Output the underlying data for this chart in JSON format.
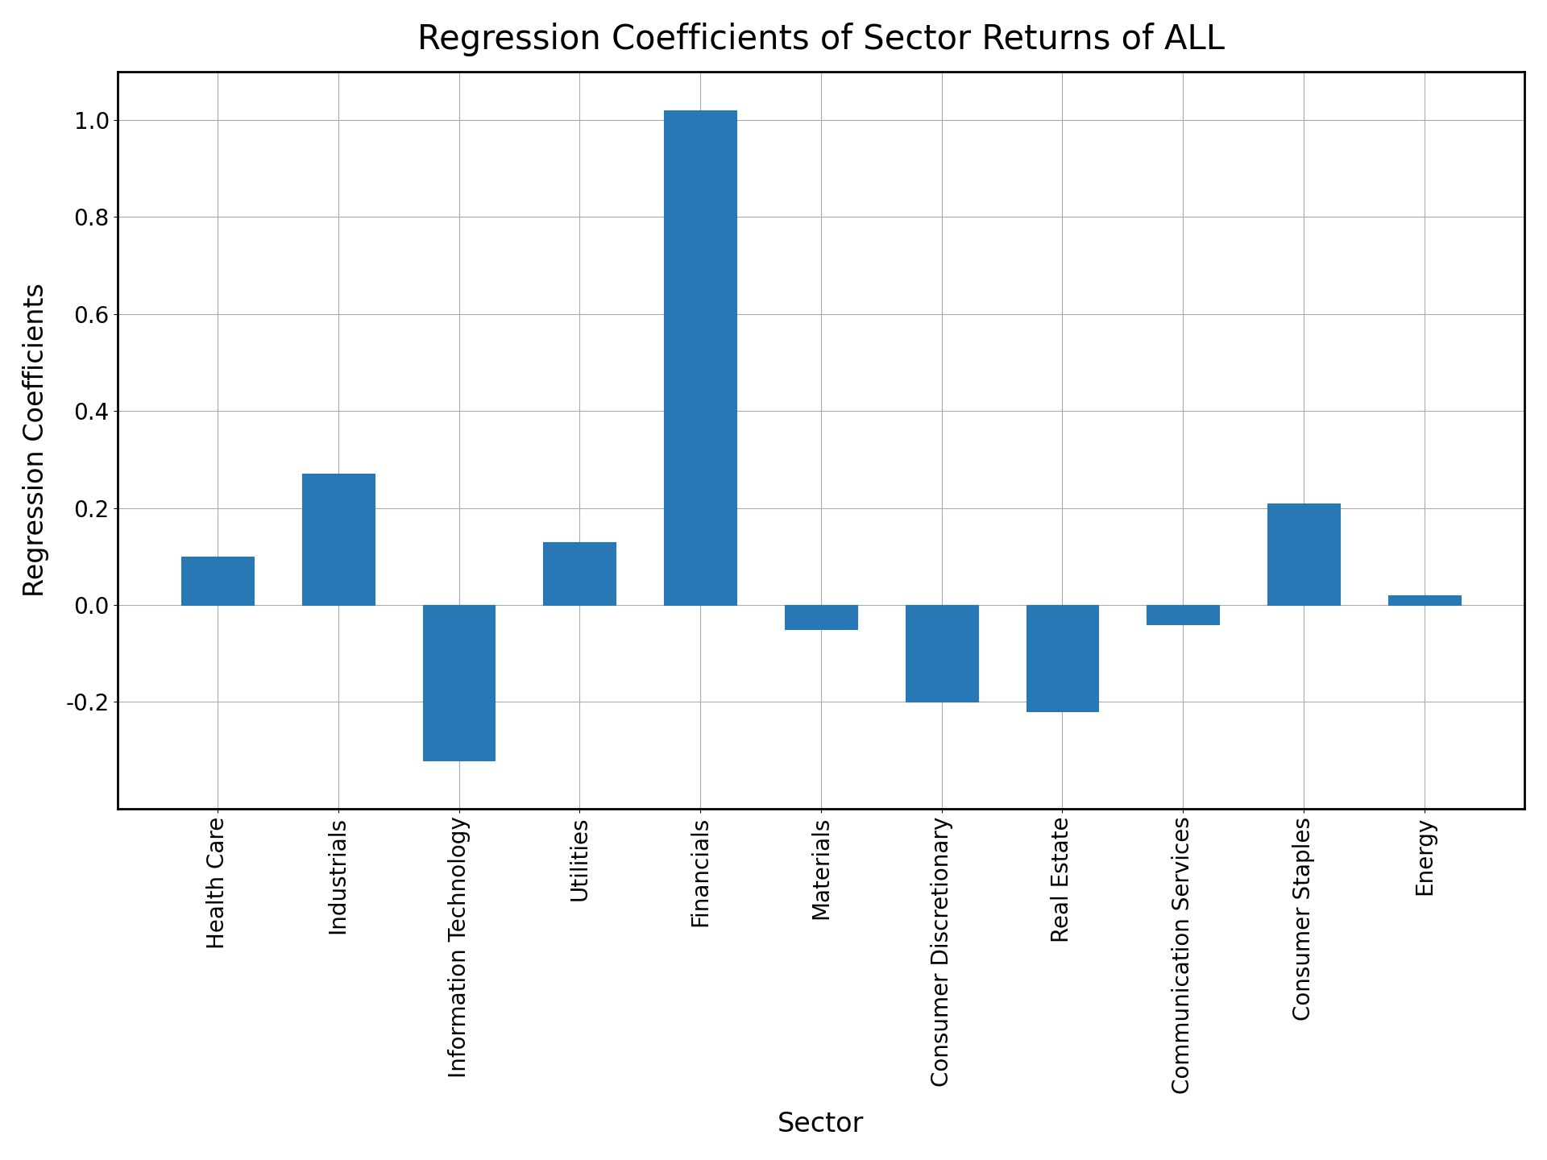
{
  "title": "Regression Coefficients of Sector Returns of ALL",
  "xlabel": "Sector",
  "ylabel": "Regression Coefficients",
  "categories": [
    "Health Care",
    "Industrials",
    "Information Technology",
    "Utilities",
    "Financials",
    "Materials",
    "Consumer Discretionary",
    "Real Estate",
    "Communication Services",
    "Consumer Staples",
    "Energy"
  ],
  "values": [
    0.1,
    0.27,
    -0.32,
    0.13,
    1.02,
    -0.05,
    -0.2,
    -0.22,
    -0.04,
    0.21,
    0.02
  ],
  "bar_color": "#2878b5",
  "bar_edgecolor": "#2878b5",
  "ylim": [
    -0.42,
    1.1
  ],
  "yticks": [
    -0.2,
    0.0,
    0.2,
    0.4,
    0.6,
    0.8,
    1.0
  ],
  "ytick_labels": [
    "-0.2",
    "0.0",
    "0.2",
    "0.4",
    "0.6",
    "0.8",
    "1.0"
  ],
  "title_fontsize": 30,
  "label_fontsize": 24,
  "tick_fontsize": 20,
  "grid": true,
  "background_color": "#ffffff",
  "plot_background_color": "#ffffff",
  "grid_color": "#aaaaaa",
  "spine_color": "#000000",
  "spine_linewidth": 2.0
}
